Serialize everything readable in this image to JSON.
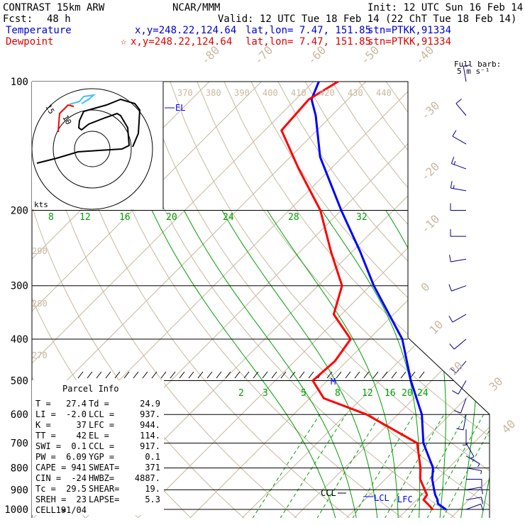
{
  "header": {
    "model": "CONTRAST 15km ARW",
    "org": "NCAR/MMM",
    "init": "Init: 12 UTC Sun 16 Feb 14",
    "fcst_label": "Fcst:",
    "fcst_value": "48 h",
    "valid": "Valid: 12 UTC Tue 18 Feb 14 (22 ChT Tue 18 Feb 14)",
    "temperature_label": "Temperature",
    "temperature_coords": "x,y=248.22,124.64",
    "temperature_latlon": "lat,lon=  7.47, 151.85",
    "temperature_stn": "stn=PTKK,91334",
    "dewpoint_label": "Dewpoint",
    "dewpoint_coords": "x,y=248.22,124.64",
    "dewpoint_latlon": "lat,lon=  7.47, 151.85",
    "dewpoint_stn": "stn=PTKK,91334"
  },
  "barbs_header": {
    "line1": "Full barb:",
    "line2": "5 m s⁻¹"
  },
  "hodograph": {
    "ring_labels": [
      "15",
      "10"
    ],
    "units": "kts"
  },
  "parcel_info": {
    "title": "Parcel Info",
    "rows": [
      [
        "T  =",
        "27.4",
        "Td =",
        "24.9"
      ],
      [
        "LI =",
        "-2.0",
        "LCL =",
        "937."
      ],
      [
        "K  =",
        "37",
        "LFC =",
        "944."
      ],
      [
        "TT =",
        "42",
        "EL =",
        "114."
      ],
      [
        "SWI =",
        "0.1",
        "CCL =",
        "917."
      ],
      [
        "PW =",
        "6.09",
        "YGP =",
        "0.1"
      ],
      [
        "CAPE =",
        "941",
        "SWEAT=",
        "371"
      ],
      [
        "CIN =",
        "-24",
        "HWBZ=",
        "4887."
      ],
      [
        "Tc =",
        "29.5",
        "SHEAR=",
        "19."
      ],
      [
        "SREH =",
        "23",
        "LAPSE=",
        "5.3"
      ],
      [
        "CELL =",
        "191/04",
        "",
        ""
      ]
    ]
  },
  "level_labels": {
    "el": "EL",
    "m": "M",
    "ccl": "CCL",
    "lcl": "LCL",
    "lfc": "LFC"
  },
  "colors": {
    "temperature": "#0000ff",
    "dewpoint": "#ff0000",
    "mixing": "#00a000",
    "dry": "#c8b8a0",
    "hodo_upper": "#40c0ff"
  },
  "chart_data": {
    "type": "line",
    "title": "",
    "pressure_levels": [
      100,
      200,
      300,
      400,
      500,
      600,
      700,
      800,
      900,
      1000
    ],
    "isotherm_labels": [
      "-80",
      "-70",
      "-60",
      "-50",
      "-40",
      "-30",
      "-20",
      "-10",
      "0",
      "10",
      "20",
      "30",
      "40"
    ],
    "theta_labels_top": [
      "370",
      "380",
      "390",
      "400",
      "410",
      "420",
      "430",
      "440"
    ],
    "theta_labels_left": [
      "290",
      "280",
      "270"
    ],
    "mixing_ratio_labels_upper": [
      "8",
      "12",
      "16",
      "20",
      "24",
      "28",
      "32"
    ],
    "mixing_ratio_labels_lower": [
      "2",
      "3",
      "5",
      "8",
      "12",
      "16",
      "20",
      "24"
    ],
    "series": [
      {
        "name": "Temperature",
        "points": [
          [
            1000,
            27.4
          ],
          [
            970,
            24.8
          ],
          [
            950,
            24.0
          ],
          [
            925,
            22.6
          ],
          [
            900,
            21.4
          ],
          [
            850,
            19.0
          ],
          [
            800,
            17.0
          ],
          [
            700,
            10.4
          ],
          [
            600,
            4.6
          ],
          [
            500,
            -4.0
          ],
          [
            400,
            -13.6
          ],
          [
            300,
            -29.3
          ],
          [
            250,
            -38.4
          ],
          [
            200,
            -50.0
          ],
          [
            150,
            -64.3
          ],
          [
            120,
            -73.1
          ],
          [
            110,
            -77.0
          ],
          [
            100,
            -79.0
          ]
        ]
      },
      {
        "name": "Dewpoint",
        "points": [
          [
            1000,
            24.9
          ],
          [
            970,
            22.8
          ],
          [
            950,
            21.3
          ],
          [
            925,
            21.0
          ],
          [
            900,
            19.6
          ],
          [
            850,
            16.7
          ],
          [
            800,
            14.6
          ],
          [
            700,
            9.2
          ],
          [
            600,
            -6.0
          ],
          [
            550,
            -17.3
          ],
          [
            500,
            -22.8
          ],
          [
            450,
            -22.3
          ],
          [
            400,
            -23.5
          ],
          [
            350,
            -31.5
          ],
          [
            300,
            -35.4
          ],
          [
            250,
            -44.0
          ],
          [
            200,
            -54.0
          ],
          [
            160,
            -66.1
          ],
          [
            130,
            -76.8
          ],
          [
            110,
            -77.5
          ],
          [
            100,
            -75.3
          ]
        ]
      }
    ],
    "wind_barbs": [
      [
        100,
        350,
        8
      ],
      [
        120,
        320,
        10
      ],
      [
        140,
        300,
        12
      ],
      [
        160,
        290,
        15
      ],
      [
        180,
        280,
        14
      ],
      [
        200,
        270,
        12
      ],
      [
        230,
        270,
        10
      ],
      [
        260,
        260,
        10
      ],
      [
        300,
        250,
        8
      ],
      [
        350,
        240,
        10
      ],
      [
        400,
        230,
        12
      ],
      [
        450,
        220,
        12
      ],
      [
        500,
        210,
        10
      ],
      [
        550,
        200,
        8
      ],
      [
        600,
        190,
        8
      ],
      [
        650,
        180,
        5
      ],
      [
        700,
        150,
        3
      ],
      [
        750,
        120,
        3
      ],
      [
        800,
        100,
        5
      ],
      [
        850,
        90,
        8
      ],
      [
        900,
        80,
        10
      ],
      [
        950,
        80,
        12
      ],
      [
        1000,
        70,
        10
      ]
    ]
  }
}
